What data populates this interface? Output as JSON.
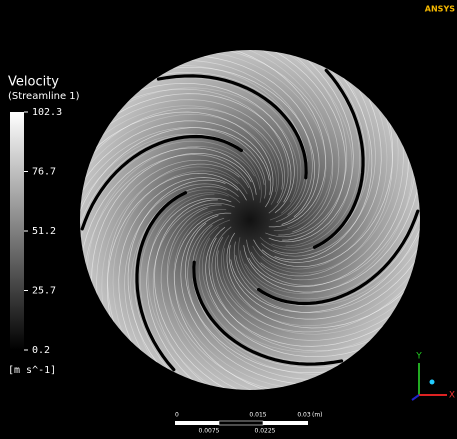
{
  "logo": "ANSYS",
  "legend": {
    "title": "Velocity",
    "subtitle": "(Streamline 1)",
    "ticks": [
      "102.3",
      "76.7",
      "51.2",
      "25.7",
      "0.2"
    ],
    "unit": "[m s^-1]"
  },
  "scale_bar": {
    "top_labels": [
      "0",
      "0.015",
      "0.03"
    ],
    "unit": "(m)",
    "bottom_labels": [
      "0.0075",
      "0.0225"
    ]
  },
  "axes": {
    "y": "Y",
    "x": "X"
  }
}
